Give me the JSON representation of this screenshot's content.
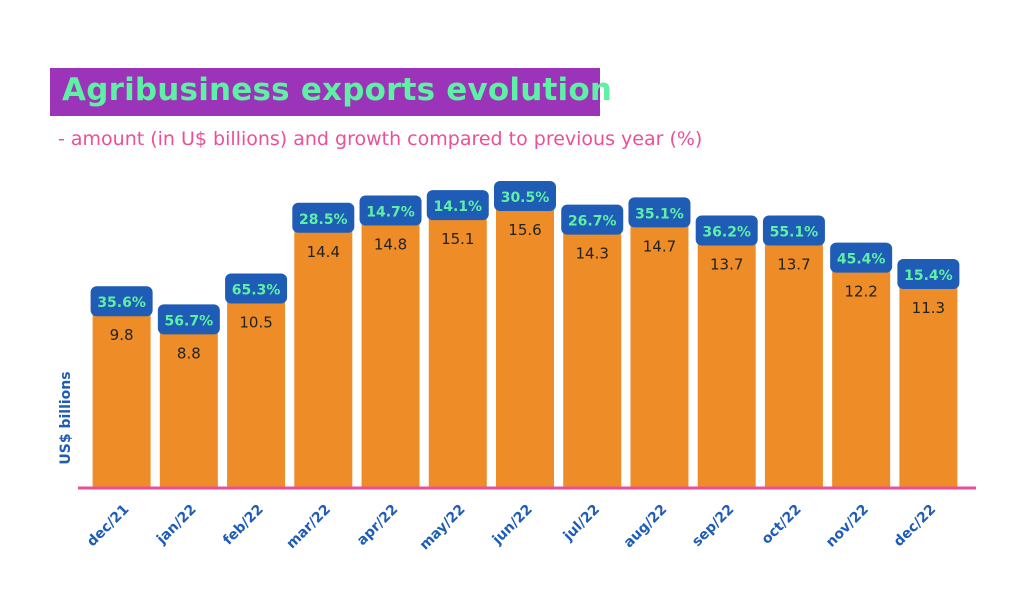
{
  "title": "Agribusiness exports evolution",
  "subtitle": "- amount (in U$ billions) and growth compared to previous year (%)",
  "colors": {
    "title_bg": "#9b34b8",
    "title_text": "#5ef0a4",
    "subtitle": "#ec4f97",
    "bar": "#ee8d27",
    "badge": "#1f5cb6",
    "badge_text": "#5ef0a4",
    "axis_line": "#ec4f97",
    "tick_label": "#1f5cb6",
    "value_label": "#222222"
  },
  "chart_data": {
    "type": "bar",
    "title": "Agribusiness exports evolution",
    "subtitle": "- amount (in U$ billions) and growth compared to previous year (%)",
    "xlabel": "",
    "ylabel": "US$ billions",
    "ylim": [
      0,
      15.6
    ],
    "grid": false,
    "legend": "none",
    "categories": [
      "dec/21",
      "jan/22",
      "feb/22",
      "mar/22",
      "apr/22",
      "may/22",
      "jun/22",
      "jul/22",
      "aug/22",
      "sep/22",
      "oct/22",
      "nov/22",
      "dec/22"
    ],
    "values": [
      9.8,
      8.8,
      10.5,
      14.4,
      14.8,
      15.1,
      15.6,
      14.3,
      14.7,
      13.7,
      13.7,
      12.2,
      11.3
    ],
    "value_labels": [
      "9.8",
      "8.8",
      "10.5",
      "14.4",
      "14.8",
      "15.1",
      "15.6",
      "14.3",
      "14.7",
      "13.7",
      "13.7",
      "12.2",
      "11.3"
    ],
    "growth_labels": [
      "35.6%",
      "56.7%",
      "65.3%",
      "28.5%",
      "14.7%",
      "14.1%",
      "30.5%",
      "26.7%",
      "35.1%",
      "36.2%",
      "55.1%",
      "45.4%",
      "15.4%"
    ]
  }
}
